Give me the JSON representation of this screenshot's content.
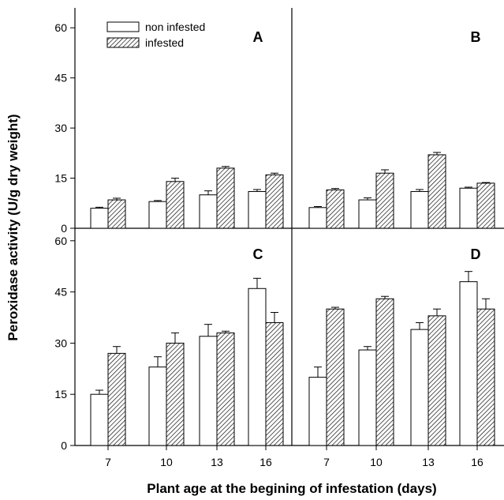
{
  "chart_data": {
    "type": "bar",
    "ylabel": "Peroxidase activity (U/g dry weight)",
    "xlabel": "Plant age  at the begining of infestation (days)",
    "categories": [
      "7",
      "10",
      "13",
      "16"
    ],
    "ylim": [
      0,
      65
    ],
    "yticks": [
      "0",
      "15",
      "30",
      "45",
      "60"
    ],
    "legend": {
      "position": "top-left",
      "entries": [
        {
          "name": "non infested",
          "pattern": "open"
        },
        {
          "name": "infested",
          "pattern": "hatched"
        }
      ]
    },
    "panels": [
      {
        "label": "A",
        "series": [
          {
            "name": "non infested",
            "values": [
              6,
              8,
              10,
              11
            ],
            "errors": [
              0.3,
              0.3,
              1.2,
              0.6
            ]
          },
          {
            "name": "infested",
            "values": [
              8.5,
              14,
              18,
              16
            ],
            "errors": [
              0.5,
              1.0,
              0.5,
              0.5
            ]
          }
        ]
      },
      {
        "label": "B",
        "series": [
          {
            "name": "non infested",
            "values": [
              6.2,
              8.5,
              11,
              12
            ],
            "errors": [
              0.3,
              0.6,
              0.6,
              0.3
            ]
          },
          {
            "name": "infested",
            "values": [
              11.5,
              16.5,
              22,
              13.5
            ],
            "errors": [
              0.4,
              1.0,
              0.7,
              0.2
            ]
          }
        ]
      },
      {
        "label": "C",
        "series": [
          {
            "name": "non infested",
            "values": [
              15,
              23,
              32,
              46
            ],
            "errors": [
              1.2,
              3.0,
              3.5,
              3.0
            ]
          },
          {
            "name": "infested",
            "values": [
              27,
              30,
              33,
              36
            ],
            "errors": [
              2.0,
              3.0,
              0.5,
              3.0
            ]
          }
        ]
      },
      {
        "label": "D",
        "series": [
          {
            "name": "non infested",
            "values": [
              20,
              28,
              34,
              48
            ],
            "errors": [
              3.0,
              1.0,
              2.0,
              3.0
            ]
          },
          {
            "name": "infested",
            "values": [
              40,
              43,
              38,
              40
            ],
            "errors": [
              0.5,
              0.7,
              2.0,
              3.0
            ]
          }
        ]
      }
    ]
  }
}
